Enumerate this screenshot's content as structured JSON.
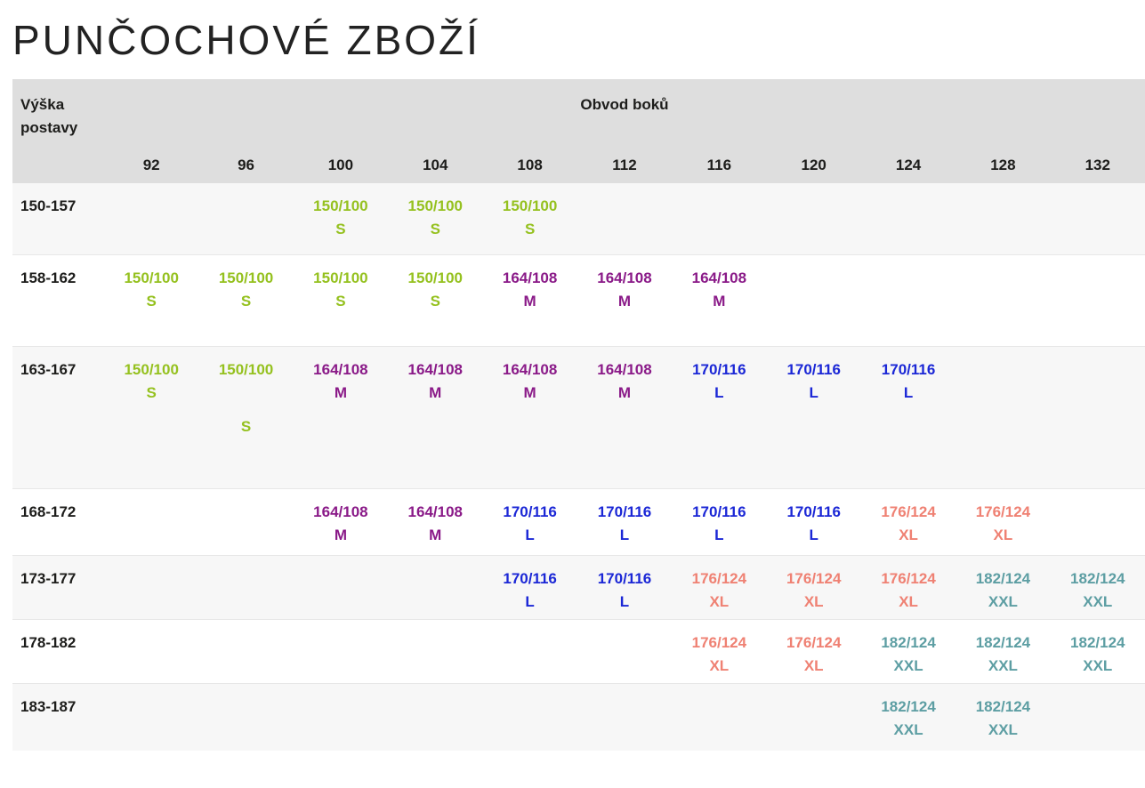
{
  "page": {
    "title": "PUNČOCHOVÉ ZBOŽÍ"
  },
  "table": {
    "row_header_label": "Výška postavy",
    "column_group_label": "Obvod boků",
    "columns": [
      "92",
      "96",
      "100",
      "104",
      "108",
      "112",
      "116",
      "120",
      "124",
      "128",
      "132"
    ],
    "size_colors": {
      "S": "#95c11f",
      "M": "#8a1a88",
      "L": "#1b27d6",
      "XL": "#ef8173",
      "XXL": "#5d9ea3"
    },
    "rows": [
      {
        "label": "150-157",
        "cells": [
          null,
          null,
          {
            "code": "150/100",
            "size": "S"
          },
          {
            "code": "150/100",
            "size": "S"
          },
          {
            "code": "150/100",
            "size": "S"
          },
          null,
          null,
          null,
          null,
          null,
          null
        ]
      },
      {
        "label": "158-162",
        "cells": [
          {
            "code": "150/100",
            "size": "S"
          },
          {
            "code": "150/100",
            "size": "S"
          },
          {
            "code": "150/100",
            "size": "S"
          },
          {
            "code": "150/100",
            "size": "S"
          },
          {
            "code": "164/108",
            "size": "M"
          },
          {
            "code": "164/108",
            "size": "M"
          },
          {
            "code": "164/108",
            "size": "M"
          },
          null,
          null,
          null,
          null
        ]
      },
      {
        "label": "163-167",
        "cells": [
          {
            "code": "150/100",
            "size": "S"
          },
          {
            "code": "150/100",
            "size": "S",
            "gap_before_size": true
          },
          {
            "code": "164/108",
            "size": "M"
          },
          {
            "code": "164/108",
            "size": "M"
          },
          {
            "code": "164/108",
            "size": "M"
          },
          {
            "code": "164/108",
            "size": "M"
          },
          {
            "code": "170/116",
            "size": "L"
          },
          {
            "code": "170/116",
            "size": "L"
          },
          {
            "code": "170/116",
            "size": "L"
          },
          null,
          null
        ]
      },
      {
        "label": "168-172",
        "cells": [
          null,
          null,
          {
            "code": "164/108",
            "size": "M"
          },
          {
            "code": "164/108",
            "size": "M"
          },
          {
            "code": "170/116",
            "size": "L"
          },
          {
            "code": "170/116",
            "size": "L"
          },
          {
            "code": "170/116",
            "size": "L"
          },
          {
            "code": "170/116",
            "size": "L"
          },
          {
            "code": "176/124",
            "size": "XL"
          },
          {
            "code": "176/124",
            "size": "XL"
          },
          null
        ]
      },
      {
        "label": "173-177",
        "cells": [
          null,
          null,
          null,
          null,
          {
            "code": "170/116",
            "size": "L"
          },
          {
            "code": "170/116",
            "size": "L"
          },
          {
            "code": "176/124",
            "size": "XL"
          },
          {
            "code": "176/124",
            "size": "XL"
          },
          {
            "code": "176/124",
            "size": "XL"
          },
          {
            "code": "182/124",
            "size": "XXL"
          },
          {
            "code": "182/124",
            "size": "XXL"
          }
        ]
      },
      {
        "label": "178-182",
        "cells": [
          null,
          null,
          null,
          null,
          null,
          null,
          {
            "code": "176/124",
            "size": "XL"
          },
          {
            "code": "176/124",
            "size": "XL"
          },
          {
            "code": "182/124",
            "size": "XXL"
          },
          {
            "code": "182/124",
            "size": "XXL"
          },
          {
            "code": "182/124",
            "size": "XXL"
          }
        ]
      },
      {
        "label": "183-187",
        "cells": [
          null,
          null,
          null,
          null,
          null,
          null,
          null,
          null,
          {
            "code": "182/124",
            "size": "XXL"
          },
          {
            "code": "182/124",
            "size": "XXL"
          },
          null
        ]
      }
    ]
  }
}
